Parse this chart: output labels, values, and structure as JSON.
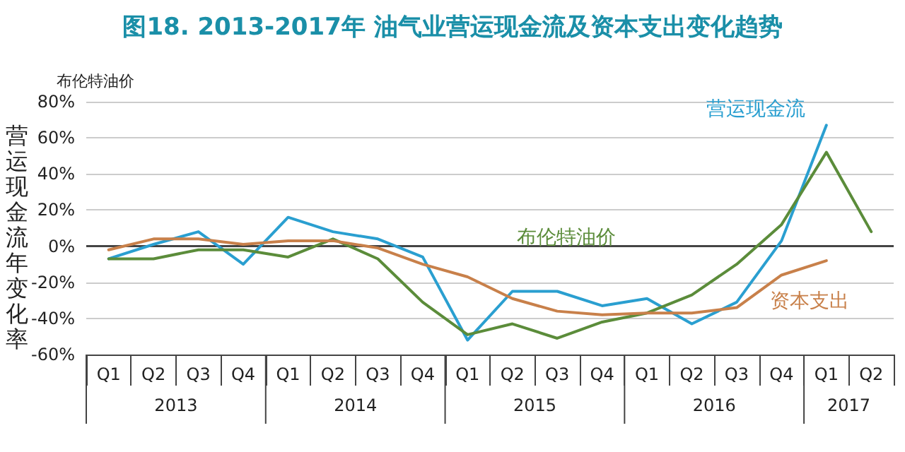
{
  "chart_data": {
    "type": "line",
    "title": "图18. 2013-2017年 油气业营运现金流及资本支出变化趋势",
    "ylabel": "营运现金流年变化率",
    "categories": [
      "Q1",
      "Q2",
      "Q3",
      "Q4",
      "Q1",
      "Q2",
      "Q3",
      "Q4",
      "Q1",
      "Q2",
      "Q3",
      "Q4",
      "Q1",
      "Q2",
      "Q3",
      "Q4",
      "Q1",
      "Q2"
    ],
    "annotations": [
      "布伦特油价",
      "2013",
      "2014",
      "2015",
      "2016",
      "2017"
    ],
    "series": [
      {
        "name": "营运现金流",
        "color": "#2a9fd0",
        "values": [
          -7,
          1,
          8,
          -10,
          16,
          8,
          4,
          -6,
          -52,
          -25,
          -25,
          -33,
          -29,
          -43,
          -31,
          3,
          67,
          null
        ]
      },
      {
        "name": "布伦特油价",
        "color": "#5b8c3a",
        "values": [
          -7,
          -7,
          -2,
          -2,
          -6,
          4,
          -7,
          -31,
          -49,
          -43,
          -51,
          -42,
          -37,
          -27,
          -10,
          12,
          52,
          8
        ]
      },
      {
        "name": "资本支出",
        "color": "#c8804a",
        "values": [
          -2,
          4,
          4,
          1,
          3,
          3,
          -1,
          -10,
          -17,
          -29,
          -36,
          -38,
          -37,
          -37,
          -34,
          -16,
          -8,
          null
        ]
      }
    ],
    "ylim": [
      -60,
      80
    ],
    "yticks": [
      {
        "value": -60,
        "label": "-60%"
      },
      {
        "value": -40,
        "label": "-40%"
      },
      {
        "value": -20,
        "label": "-20%"
      },
      {
        "value": 0,
        "label": "0%"
      },
      {
        "value": 20,
        "label": "20%"
      },
      {
        "value": 40,
        "label": "40%"
      },
      {
        "value": 60,
        "label": "60%"
      },
      {
        "value": 80,
        "label": "80%"
      }
    ],
    "grid": "y",
    "legend": false,
    "marker": "none",
    "line_style": "solid"
  }
}
